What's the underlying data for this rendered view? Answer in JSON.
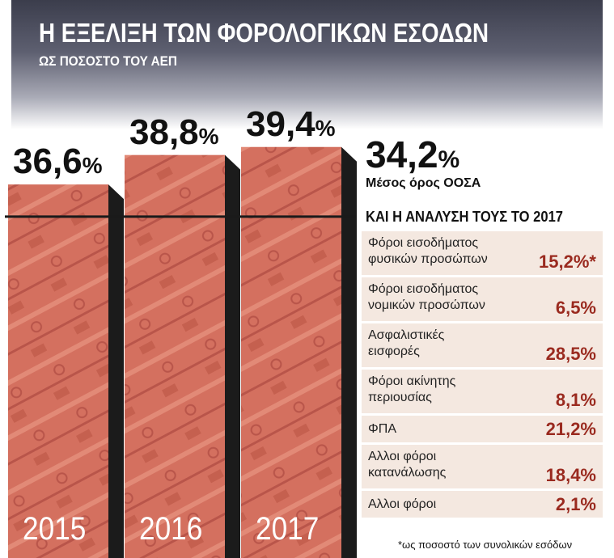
{
  "title": "Η ΕΞΕΛΙΞΗ ΤΩΝ ΦΟΡΟΛΟΓΙΚΩΝ ΕΣΟΔΩΝ",
  "subtitle": "ΩΣ ΠΟΣΟΣΤΟ ΤΟΥ ΑΕΠ",
  "colors": {
    "bar": "#d4705f",
    "bar_dark": "#a9473b",
    "reference_line": "#1a1a1a",
    "value_text": "#9a2a1f",
    "row_bg": "#f4e8e0"
  },
  "chart_data": [
    {
      "type": "bar",
      "title": "Η ΕΞΕΛΙΞΗ ΤΩΝ ΦΟΡΟΛΟΓΙΚΩΝ ΕΣΟΔΩΝ",
      "subtitle": "ΩΣ ΠΟΣΟΣΤΟ ΤΟΥ ΑΕΠ",
      "categories": [
        "2015",
        "2016",
        "2017"
      ],
      "values": [
        36.6,
        38.8,
        39.4
      ],
      "value_labels": [
        {
          "num": "36,6",
          "sign": "%"
        },
        {
          "num": "38,8",
          "sign": "%"
        },
        {
          "num": "39,4",
          "sign": "%"
        }
      ],
      "reference": {
        "value": 34.2,
        "num": "34,2",
        "sign": "%",
        "label": "Μέσος όρος ΟΟΣΑ"
      }
    },
    {
      "type": "table",
      "title": "ΚΑΙ Η ΑΝΑΛΥΣΗ ΤΟΥΣ ΤΟ 2017",
      "rows": [
        {
          "lines": [
            "Φόροι εισοδήματος",
            "φυσικών προσώπων"
          ],
          "value_label": "15,2%*",
          "value": 15.2
        },
        {
          "lines": [
            "Φόροι εισοδήματος",
            "νομικών προσώπων"
          ],
          "value_label": "6,5%",
          "value": 6.5
        },
        {
          "lines": [
            "Ασφαλιστικές",
            "εισφορές"
          ],
          "value_label": "28,5%",
          "value": 28.5
        },
        {
          "lines": [
            "Φόροι ακίνητης",
            "περιουσίας"
          ],
          "value_label": "8,1%",
          "value": 8.1
        },
        {
          "lines": [
            "ΦΠΑ"
          ],
          "value_label": "21,2%",
          "value": 21.2
        },
        {
          "lines": [
            "Αλλοι φόροι",
            "κατανάλωσης"
          ],
          "value_label": "18,4%",
          "value": 18.4
        },
        {
          "lines": [
            "Αλλοι φόροι"
          ],
          "value_label": "2,1%",
          "value": 2.1
        }
      ],
      "footnote": "*ως ποσοστό των συνολικών εσόδων"
    }
  ]
}
